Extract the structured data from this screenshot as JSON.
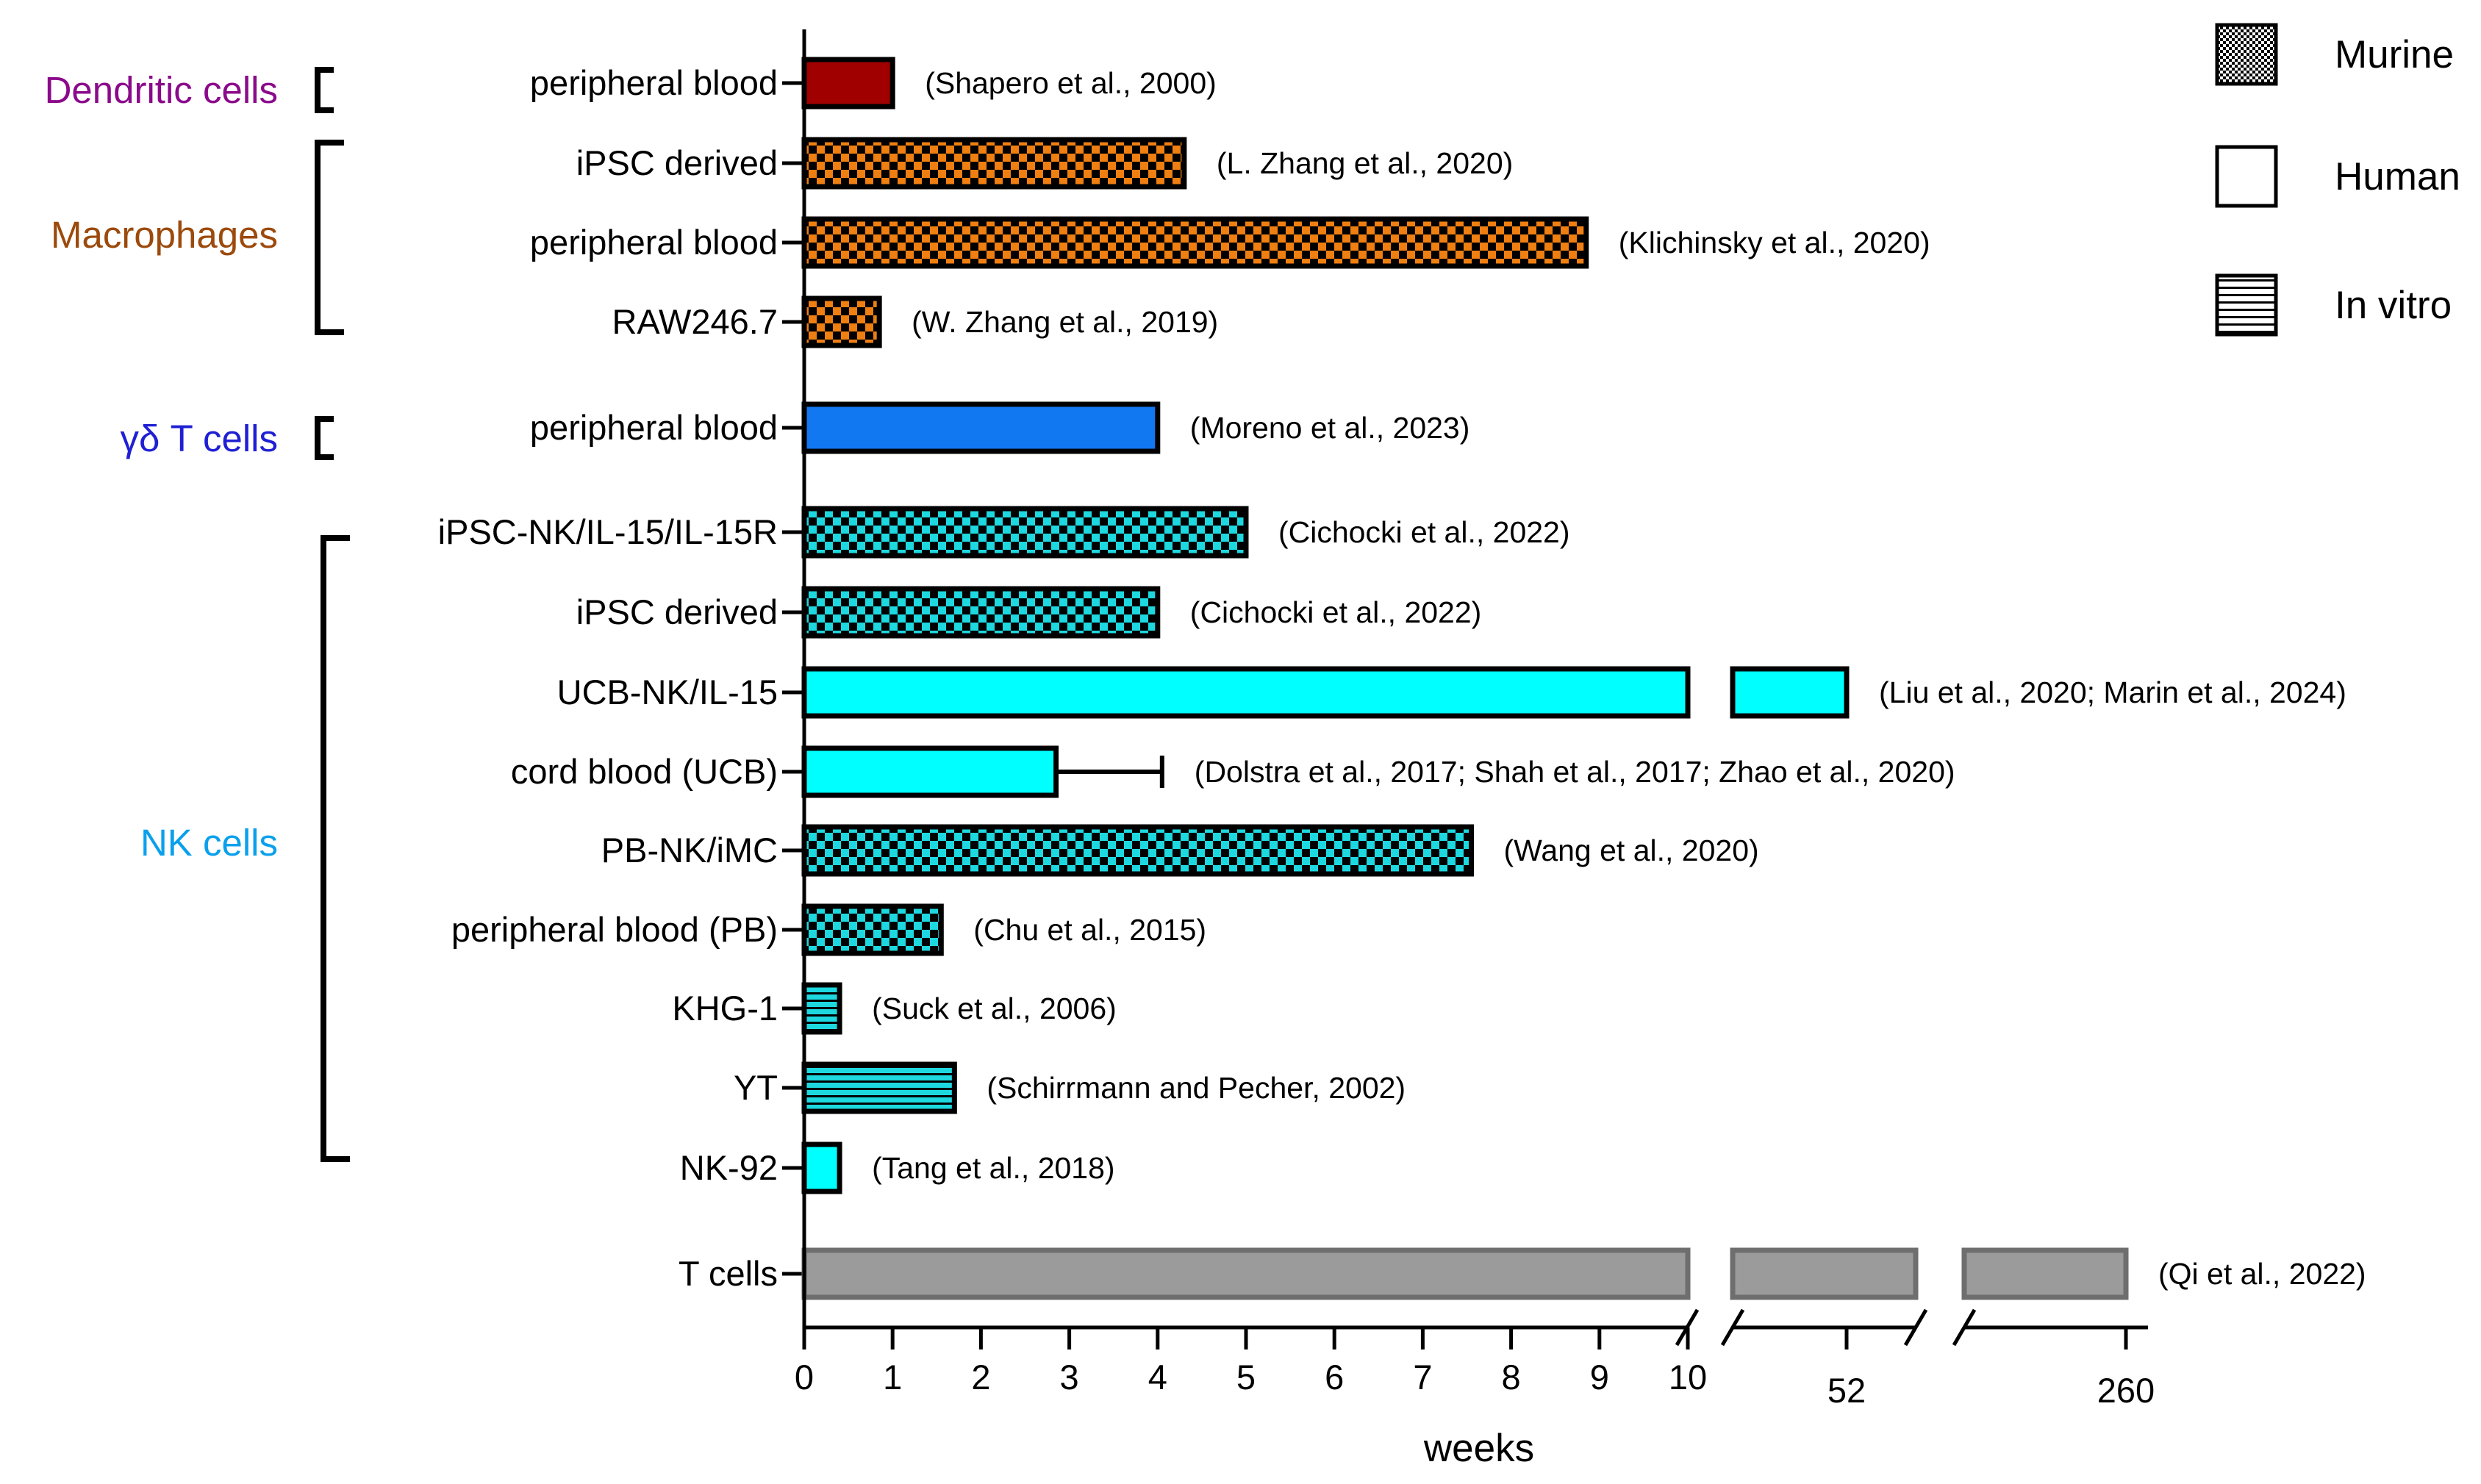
{
  "chart_data": {
    "type": "bar",
    "orientation": "horizontal",
    "xlabel": "weeks",
    "x_ticks": [
      "0",
      "1",
      "2",
      "3",
      "4",
      "5",
      "6",
      "7",
      "8",
      "9",
      "10",
      "52",
      "260"
    ],
    "x_axis_breaks": [
      "10 to 52",
      "52 to 260"
    ],
    "legend": [
      {
        "label": "Murine",
        "pattern": "fine-checker"
      },
      {
        "label": "Human",
        "pattern": "solid"
      },
      {
        "label": "In vitro",
        "pattern": "horizontal-lines"
      }
    ],
    "groups": [
      {
        "name": "Dendritic cells",
        "color": "#8b0a8b",
        "rows": [
          0
        ]
      },
      {
        "name": "Macrophages",
        "color": "#9c4a0c",
        "rows": [
          1,
          2,
          3
        ]
      },
      {
        "name": "γδ T cells",
        "color": "#1f1fd4",
        "rows": [
          4
        ]
      },
      {
        "name": "NK cells",
        "color": "#0aa0ec",
        "rows": [
          5,
          6,
          7,
          8,
          9,
          10,
          11,
          12,
          13
        ]
      }
    ],
    "rows": [
      {
        "label": "peripheral blood",
        "value": 1.0,
        "unit": "weeks",
        "model": "Human",
        "color": "#a10000",
        "reference": "(Shapero et al., 2000)"
      },
      {
        "label": "iPSC derived",
        "value": 4.3,
        "unit": "weeks",
        "model": "Murine",
        "color": "#f07f12",
        "reference": "(L. Zhang et al., 2020)"
      },
      {
        "label": "peripheral blood",
        "value": 8.85,
        "unit": "weeks",
        "model": "Murine",
        "color": "#f07f12",
        "reference": "(Klichinsky et al., 2020)"
      },
      {
        "label": "RAW246.7",
        "value": 0.85,
        "unit": "weeks",
        "model": "Murine",
        "color": "#f07f12",
        "reference": "(W. Zhang et al., 2019)"
      },
      {
        "label": "peripheral blood",
        "value": 4.0,
        "unit": "weeks",
        "model": "Human",
        "color": "#1278f2",
        "reference": "(Moreno et al., 2023)"
      },
      {
        "label": "iPSC-NK/IL-15/IL-15R",
        "value": 5.0,
        "unit": "weeks",
        "model": "Murine",
        "color": "#1ed8e0",
        "reference": "(Cichocki et al., 2022)"
      },
      {
        "label": "iPSC derived",
        "value": 4.0,
        "unit": "weeks",
        "model": "Murine",
        "color": "#1ed8e0",
        "reference": "(Cichocki et al., 2022)"
      },
      {
        "label": "UCB-NK/IL-15",
        "value": 52,
        "unit": "weeks",
        "model": "Human",
        "color": "#00ffff",
        "reference": "(Liu et al., 2020; Marin et al., 2024)"
      },
      {
        "label": "cord blood (UCB)",
        "value": 2.85,
        "error_upper": 4.05,
        "unit": "weeks",
        "model": "Human",
        "color": "#00ffff",
        "reference": "(Dolstra et al., 2017; Shah et al., 2017; Zhao et al., 2020)"
      },
      {
        "label": "PB-NK/iMC",
        "value": 7.55,
        "unit": "weeks",
        "model": "Murine",
        "color": "#1ed8e0",
        "reference": "(Wang et al., 2020)"
      },
      {
        "label": "peripheral blood (PB)",
        "value": 1.55,
        "unit": "weeks",
        "model": "Murine",
        "color": "#1ed8e0",
        "reference": "(Chu et al., 2015)"
      },
      {
        "label": "KHG-1",
        "value": 0.4,
        "unit": "weeks",
        "model": "In vitro",
        "color": "#1ed8e0",
        "reference": "(Suck et al., 2006)"
      },
      {
        "label": "YT",
        "value": 1.7,
        "unit": "weeks",
        "model": "In vitro",
        "color": "#1ed8e0",
        "reference": "(Schirrmann and Pecher, 2002)"
      },
      {
        "label": "NK-92",
        "value": 0.4,
        "unit": "weeks",
        "model": "Human",
        "color": "#00ffff",
        "reference": "(Tang et al., 2018)"
      },
      {
        "label": "T cells",
        "value": 260,
        "unit": "weeks",
        "model": "Human",
        "color": "#9b9b9b",
        "reference": "(Qi et al., 2022)"
      }
    ]
  }
}
